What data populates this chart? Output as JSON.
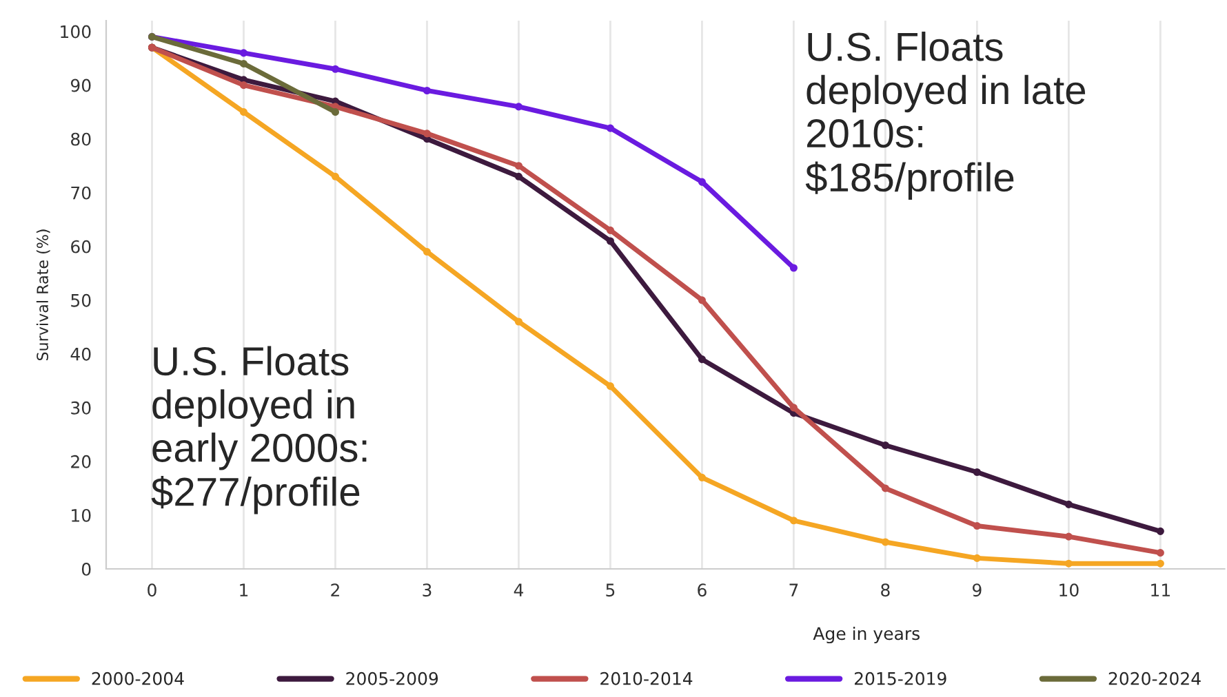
{
  "chart_data": {
    "type": "line",
    "xlabel": "Age in years",
    "ylabel": "Survival Rate (%)",
    "x": [
      0,
      1,
      2,
      3,
      4,
      5,
      6,
      7,
      8,
      9,
      10,
      11
    ],
    "series": [
      {
        "name": "2000-2004",
        "color": "#f5a623",
        "values": [
          97,
          85,
          73,
          59,
          46,
          34,
          17,
          9,
          5,
          2,
          1,
          1
        ]
      },
      {
        "name": "2005-2009",
        "color": "#3d1a3e",
        "values": [
          97,
          91,
          87,
          80,
          73,
          61,
          39,
          29,
          23,
          18,
          12,
          7
        ]
      },
      {
        "name": "2010-2014",
        "color": "#c0504d",
        "values": [
          97,
          90,
          86,
          81,
          75,
          63,
          50,
          30,
          15,
          8,
          6,
          3
        ]
      },
      {
        "name": "2015-2019",
        "color": "#6a1be0",
        "values": [
          99,
          96,
          93,
          89,
          86,
          82,
          72,
          56,
          null,
          null,
          null,
          null
        ]
      },
      {
        "name": "2020-2024",
        "color": "#6b6b3a",
        "values": [
          99,
          94,
          85,
          null,
          null,
          null,
          null,
          null,
          null,
          null,
          null,
          null
        ]
      }
    ],
    "xlim": [
      -0.5,
      11.7
    ],
    "xticks": [
      0,
      1,
      2,
      3,
      4,
      5,
      6,
      7,
      8,
      9,
      10,
      11
    ],
    "ylim": [
      0,
      102
    ],
    "yticks": [
      0,
      10,
      20,
      30,
      40,
      50,
      60,
      70,
      80,
      90,
      100
    ],
    "grid": "x",
    "legend": "bottom",
    "marker": "circle",
    "line_style": "solid",
    "annotations": [
      "U.S. Floats\ndeployed in\nearly 2000s:\n$277/profile",
      "U.S. Floats\ndeployed in late\n2010s:\n$185/profile"
    ]
  }
}
